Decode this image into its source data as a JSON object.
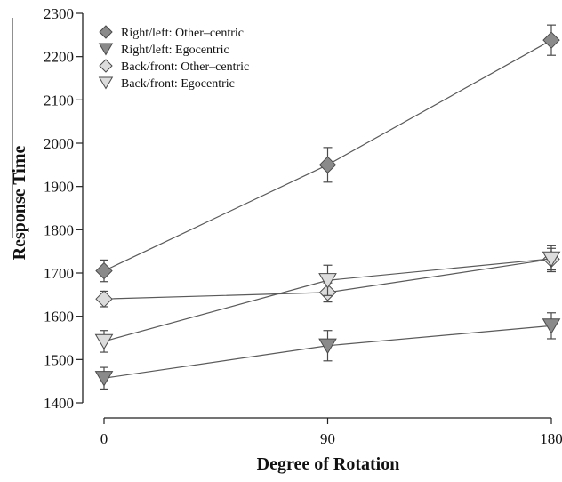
{
  "chart_data": {
    "type": "line",
    "xlabel": "Degree of Rotation",
    "ylabel": "Response Time",
    "x": [
      0,
      90,
      180
    ],
    "xlim": [
      0,
      180
    ],
    "ylim": [
      1400,
      2300
    ],
    "xticks": [
      "0",
      "90",
      "180"
    ],
    "yticks": [
      "1400",
      "1500",
      "1600",
      "1700",
      "1800",
      "1900",
      "2000",
      "2100",
      "2200",
      "2300"
    ],
    "legend_position": "top-left",
    "grid": false,
    "series": [
      {
        "name": "Right/left: Other–centric",
        "marker": "diamond",
        "fill": "#8a8a8a",
        "values": [
          1705,
          1950,
          2238
        ],
        "errors": [
          25,
          40,
          35
        ]
      },
      {
        "name": "Right/left: Egocentric",
        "marker": "triangle-down",
        "fill": "#8a8a8a",
        "values": [
          1457,
          1532,
          1578
        ],
        "errors": [
          25,
          35,
          30
        ]
      },
      {
        "name": "Back/front: Other–centric",
        "marker": "diamond",
        "fill": "#dcdcdc",
        "values": [
          1640,
          1655,
          1732
        ],
        "errors": [
          18,
          22,
          25
        ]
      },
      {
        "name": "Back/front: Egocentric",
        "marker": "triangle-down",
        "fill": "#dcdcdc",
        "values": [
          1542,
          1683,
          1733
        ],
        "errors": [
          25,
          35,
          30
        ]
      }
    ],
    "colors": {
      "line": "#5a5a5a",
      "marker_stroke": "#4a4a4a",
      "axis": "#222222"
    }
  }
}
